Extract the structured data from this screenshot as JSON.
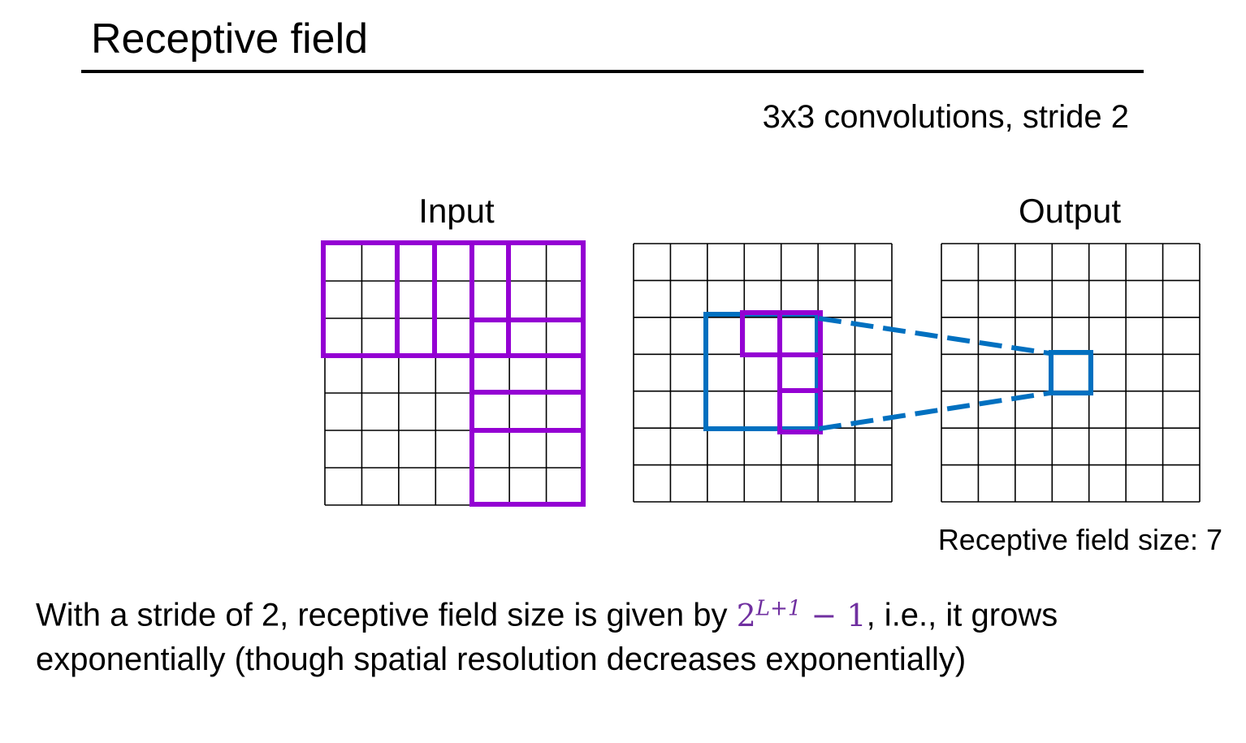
{
  "slide": {
    "title": "Receptive field",
    "subtitle": "3x3 convolutions, stride 2",
    "input_label": "Input",
    "output_label": "Output",
    "receptive_field_size": "Receptive field size: 7",
    "caption": {
      "before": "With a stride of 2, receptive field size is given by ",
      "formula_base": "2",
      "formula_exp": "L+1",
      "formula_rest": " − 1",
      "after": ", i.e., it grows exponentially (though spatial resolution decreases exponentially)"
    }
  },
  "diagram": {
    "grid_size": 7,
    "colors": {
      "purple": "#9400d3",
      "blue": "#0070c0",
      "grid": "#000000"
    }
  }
}
